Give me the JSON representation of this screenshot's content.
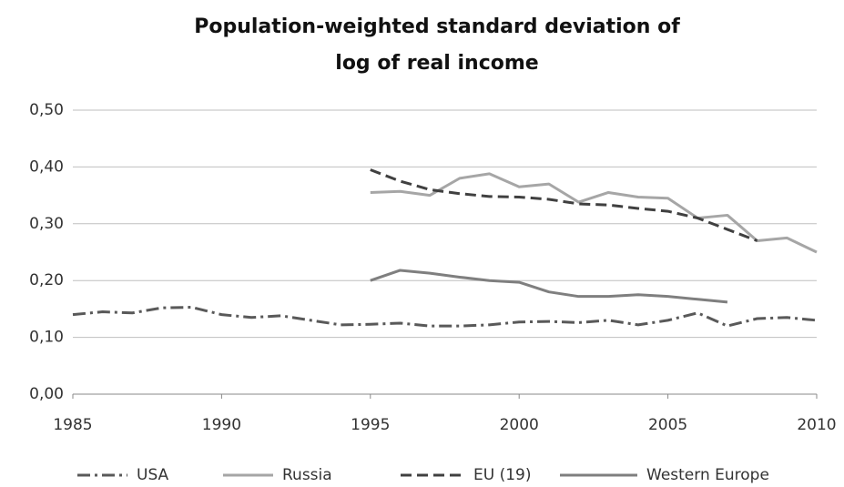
{
  "chart_data": {
    "type": "line",
    "title": [
      "Population-weighted standard deviation of",
      "log of real income"
    ],
    "x": [
      1985,
      1986,
      1987,
      1988,
      1989,
      1990,
      1991,
      1992,
      1993,
      1994,
      1995,
      1996,
      1997,
      1998,
      1999,
      2000,
      2001,
      2002,
      2003,
      2004,
      2005,
      2006,
      2007,
      2008,
      2009,
      2010
    ],
    "series": [
      {
        "name": "USA",
        "color": "#595959",
        "dash": "dash-dot",
        "values": [
          0.14,
          0.145,
          0.143,
          0.152,
          0.153,
          0.14,
          0.135,
          0.138,
          0.13,
          0.122,
          0.123,
          0.125,
          0.12,
          0.12,
          0.122,
          0.127,
          0.128,
          0.126,
          0.13,
          0.122,
          0.13,
          0.143,
          0.12,
          0.133,
          0.135,
          0.13
        ]
      },
      {
        "name": "Russia",
        "color": "#a6a6a6",
        "dash": "solid",
        "values": [
          null,
          null,
          null,
          null,
          null,
          null,
          null,
          null,
          null,
          null,
          0.355,
          0.357,
          0.35,
          0.38,
          0.388,
          0.365,
          0.37,
          0.338,
          0.355,
          0.347,
          0.345,
          0.31,
          0.315,
          0.27,
          0.275,
          0.25
        ]
      },
      {
        "name": "EU (19)",
        "color": "#404040",
        "dash": "dash",
        "values": [
          null,
          null,
          null,
          null,
          null,
          null,
          null,
          null,
          null,
          null,
          0.395,
          0.375,
          0.36,
          0.353,
          0.348,
          0.347,
          0.343,
          0.335,
          0.333,
          0.327,
          0.322,
          0.31,
          0.29,
          0.27,
          null,
          null
        ]
      },
      {
        "name": "Western Europe",
        "color": "#7f7f7f",
        "dash": "solid",
        "values": [
          null,
          null,
          null,
          null,
          null,
          null,
          null,
          null,
          null,
          null,
          0.2,
          0.218,
          0.213,
          0.206,
          0.2,
          0.197,
          0.18,
          0.172,
          0.172,
          0.175,
          0.172,
          0.167,
          0.162,
          null,
          null,
          null
        ]
      }
    ],
    "xlim": [
      1985,
      2010
    ],
    "xticks": [
      1985,
      1990,
      1995,
      2000,
      2005,
      2010
    ],
    "ylim": [
      0,
      0.5
    ],
    "yticks": [
      {
        "value": 0,
        "label": "0,00"
      },
      {
        "value": 0.1,
        "label": "0,10"
      },
      {
        "value": 0.2,
        "label": "0,20"
      },
      {
        "value": 0.3,
        "label": "0,30"
      },
      {
        "value": 0.4,
        "label": "0,40"
      },
      {
        "value": 0.5,
        "label": "0,50"
      }
    ],
    "grid": true,
    "legend": "bottom"
  }
}
